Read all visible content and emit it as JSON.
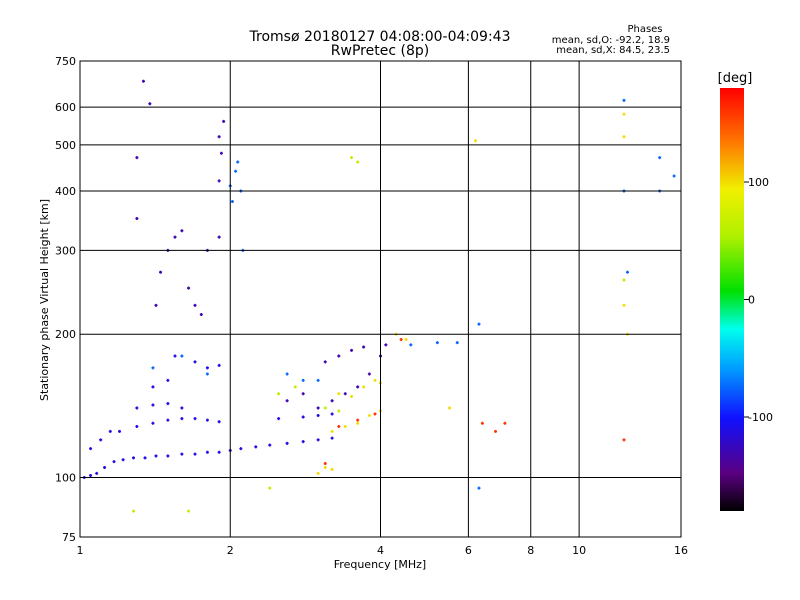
{
  "chart_data": {
    "type": "scatter",
    "title": "Tromsø 20180127 04:08:00-04:09:43",
    "subtitle": "RwPretec (8p)",
    "stats": {
      "heading": "Phases",
      "line1": "mean, sd,O: -92.2, 18.9",
      "line2": "mean, sd,X:  84.5, 23.5"
    },
    "xlabel": "Frequency [MHz]",
    "ylabel": "Stationary phase Virtual Height [km]",
    "x_scale": "log",
    "y_scale": "log",
    "xlim": [
      1,
      16
    ],
    "ylim": [
      75,
      750
    ],
    "x_ticks": [
      1,
      2,
      4,
      6,
      8,
      10,
      16
    ],
    "x_tick_labels": [
      "1",
      "2",
      "4",
      "6",
      "8",
      "10",
      "16"
    ],
    "x_grid": [
      2,
      4,
      6,
      8,
      10
    ],
    "y_ticks": [
      75,
      100,
      200,
      300,
      400,
      500,
      600,
      750
    ],
    "y_tick_labels": [
      "75",
      "100",
      "200",
      "300",
      "400",
      "500",
      "600",
      "750"
    ],
    "y_grid": [
      100,
      200,
      300,
      400,
      500,
      600
    ],
    "colorbar": {
      "label": "[deg]",
      "range": [
        -180,
        180
      ],
      "ticks": [
        100,
        0,
        -100
      ],
      "tick_labels": [
        "100",
        "0",
        "-100"
      ]
    },
    "series": [
      {
        "color_value": -110,
        "points": [
          [
            1.02,
            100
          ],
          [
            1.05,
            101
          ],
          [
            1.08,
            102
          ],
          [
            1.12,
            105
          ],
          [
            1.17,
            108
          ],
          [
            1.22,
            109
          ],
          [
            1.28,
            110
          ],
          [
            1.35,
            110
          ],
          [
            1.42,
            111
          ],
          [
            1.5,
            111
          ],
          [
            1.6,
            112
          ],
          [
            1.7,
            112
          ],
          [
            1.8,
            113
          ],
          [
            1.9,
            113
          ],
          [
            2.0,
            114
          ],
          [
            2.1,
            115
          ],
          [
            2.25,
            116
          ],
          [
            2.4,
            117
          ],
          [
            2.6,
            118
          ],
          [
            2.8,
            119
          ],
          [
            3.0,
            120
          ],
          [
            3.2,
            121
          ],
          [
            1.2,
            125
          ],
          [
            1.3,
            128
          ],
          [
            1.4,
            130
          ],
          [
            1.5,
            132
          ],
          [
            1.6,
            133
          ],
          [
            1.7,
            133
          ],
          [
            1.8,
            132
          ],
          [
            1.9,
            131
          ],
          [
            2.5,
            133
          ],
          [
            2.8,
            134
          ],
          [
            3.0,
            135
          ],
          [
            3.2,
            136
          ],
          [
            1.3,
            140
          ],
          [
            1.4,
            142
          ],
          [
            1.5,
            143
          ],
          [
            1.6,
            140
          ],
          [
            1.4,
            155
          ],
          [
            1.5,
            160
          ],
          [
            1.55,
            180
          ],
          [
            1.7,
            175
          ],
          [
            1.8,
            170
          ],
          [
            1.9,
            172
          ],
          [
            1.05,
            115
          ],
          [
            1.1,
            120
          ],
          [
            1.15,
            125
          ]
        ]
      },
      {
        "color_value": -130,
        "points": [
          [
            3.0,
            140
          ],
          [
            3.2,
            145
          ],
          [
            3.4,
            150
          ],
          [
            3.6,
            155
          ],
          [
            3.8,
            165
          ],
          [
            4.0,
            180
          ],
          [
            4.1,
            190
          ],
          [
            3.1,
            175
          ],
          [
            3.3,
            180
          ],
          [
            3.5,
            185
          ],
          [
            3.7,
            188
          ],
          [
            2.6,
            145
          ],
          [
            2.8,
            150
          ],
          [
            1.45,
            270
          ],
          [
            1.5,
            300
          ],
          [
            1.55,
            320
          ],
          [
            1.6,
            330
          ],
          [
            1.65,
            250
          ],
          [
            1.7,
            230
          ],
          [
            1.75,
            220
          ],
          [
            1.8,
            300
          ],
          [
            1.9,
            320
          ],
          [
            1.9,
            420
          ],
          [
            1.92,
            480
          ],
          [
            1.94,
            560
          ],
          [
            1.9,
            520
          ],
          [
            1.38,
            610
          ],
          [
            1.34,
            680
          ],
          [
            1.3,
            470
          ],
          [
            1.3,
            350
          ],
          [
            1.42,
            230
          ]
        ]
      },
      {
        "color_value": -75,
        "points": [
          [
            2.0,
            410
          ],
          [
            2.02,
            380
          ],
          [
            2.05,
            440
          ],
          [
            2.07,
            460
          ],
          [
            2.1,
            400
          ],
          [
            2.12,
            300
          ],
          [
            2.6,
            165
          ],
          [
            2.8,
            160
          ],
          [
            3.0,
            160
          ],
          [
            1.4,
            170
          ],
          [
            1.6,
            180
          ],
          [
            1.8,
            165
          ],
          [
            4.6,
            190
          ],
          [
            5.2,
            192
          ],
          [
            5.7,
            192
          ],
          [
            6.3,
            210
          ],
          [
            6.3,
            95
          ],
          [
            12.3,
            620
          ],
          [
            12.3,
            400
          ],
          [
            12.5,
            270
          ],
          [
            14.5,
            400
          ],
          [
            14.5,
            470
          ],
          [
            15.5,
            430
          ]
        ]
      },
      {
        "color_value": 100,
        "points": [
          [
            3.2,
            125
          ],
          [
            3.4,
            128
          ],
          [
            3.6,
            130
          ],
          [
            3.8,
            135
          ],
          [
            4.0,
            138
          ],
          [
            3.5,
            148
          ],
          [
            3.7,
            155
          ],
          [
            3.9,
            160
          ],
          [
            4.0,
            158
          ],
          [
            3.3,
            150
          ],
          [
            3.1,
            105
          ],
          [
            3.0,
            102
          ],
          [
            3.2,
            104
          ],
          [
            4.3,
            200
          ],
          [
            4.5,
            195
          ],
          [
            5.5,
            140
          ],
          [
            6.2,
            510
          ],
          [
            12.3,
            580
          ],
          [
            12.3,
            520
          ],
          [
            12.3,
            230
          ],
          [
            12.5,
            200
          ]
        ]
      },
      {
        "color_value": 60,
        "points": [
          [
            2.5,
            150
          ],
          [
            2.7,
            155
          ],
          [
            3.1,
            140
          ],
          [
            3.3,
            138
          ],
          [
            2.4,
            95
          ],
          [
            1.28,
            85
          ],
          [
            1.65,
            85
          ],
          [
            12.3,
            260
          ],
          [
            3.5,
            470
          ],
          [
            3.6,
            460
          ]
        ]
      },
      {
        "color_value": 160,
        "points": [
          [
            3.3,
            128
          ],
          [
            3.6,
            132
          ],
          [
            3.9,
            136
          ],
          [
            4.4,
            195
          ],
          [
            3.1,
            107
          ],
          [
            6.8,
            125
          ],
          [
            7.1,
            130
          ],
          [
            12.3,
            120
          ],
          [
            6.4,
            130
          ]
        ]
      }
    ]
  }
}
